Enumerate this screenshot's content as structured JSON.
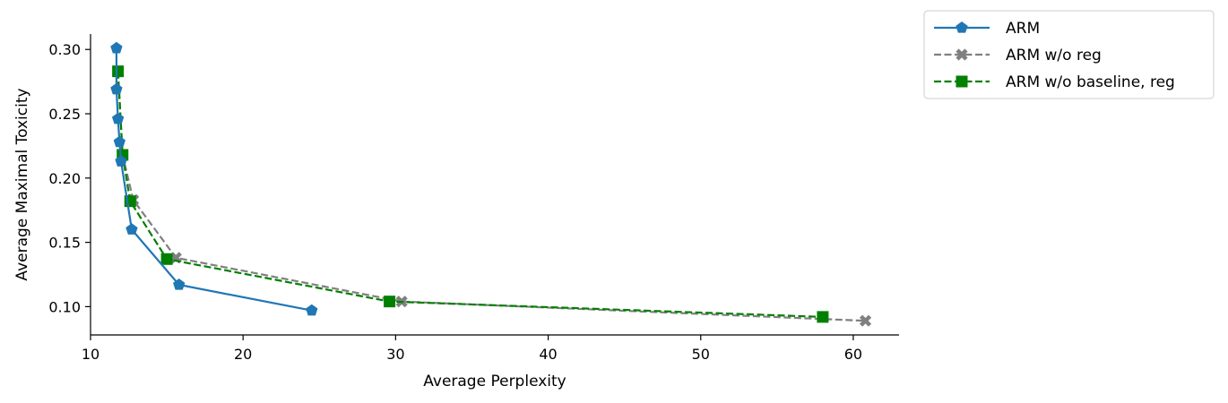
{
  "chart_data": {
    "type": "line",
    "title": "",
    "xlabel": "Average Perplexity",
    "ylabel": "Average Maximal Toxicity",
    "xlim": [
      10,
      63
    ],
    "ylim": [
      0.078,
      0.312
    ],
    "xticks": [
      10,
      20,
      30,
      40,
      50,
      60
    ],
    "yticks": [
      0.1,
      0.15,
      0.2,
      0.25,
      0.3
    ],
    "xtick_labels": [
      "10",
      "20",
      "30",
      "40",
      "50",
      "60"
    ],
    "ytick_labels": [
      "0.10",
      "0.15",
      "0.20",
      "0.25",
      "0.30"
    ],
    "grid": false,
    "legend_position": "outside top-right",
    "series": [
      {
        "name": "ARM",
        "color": "#1f77b4",
        "linestyle": "solid",
        "marker": "pentagon",
        "x": [
          11.7,
          11.7,
          11.8,
          11.9,
          12.0,
          12.7,
          15.8,
          24.5
        ],
        "y": [
          0.301,
          0.269,
          0.246,
          0.228,
          0.213,
          0.16,
          0.117,
          0.097
        ]
      },
      {
        "name": "ARM w/o reg",
        "color": "#808080",
        "linestyle": "dashed",
        "marker": "x",
        "x": [
          11.8,
          12.1,
          12.8,
          15.6,
          30.4,
          60.8
        ],
        "y": [
          0.283,
          0.218,
          0.183,
          0.138,
          0.104,
          0.089
        ]
      },
      {
        "name": "ARM w/o baseline, reg",
        "color": "#008000",
        "linestyle": "dashed",
        "marker": "square",
        "x": [
          11.8,
          12.1,
          12.6,
          15.0,
          29.6,
          58.0
        ],
        "y": [
          0.283,
          0.218,
          0.182,
          0.137,
          0.104,
          0.092
        ]
      }
    ]
  }
}
